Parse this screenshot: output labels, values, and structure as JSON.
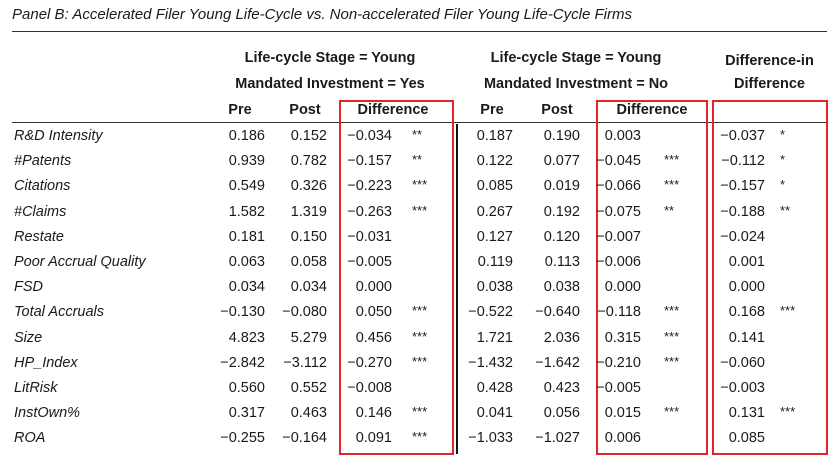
{
  "panel_title": "Panel B: Accelerated Filer Young Life-Cycle vs. Non-accelerated Filer Young Life-Cycle Firms",
  "groups": [
    {
      "line1": "Life-cycle Stage = Young",
      "line2": "Mandated Investment = Yes"
    },
    {
      "line1": "Life-cycle Stage = Young",
      "line2": "Mandated Investment = No"
    }
  ],
  "did_header": {
    "line1": "Difference-in",
    "line2": "Difference"
  },
  "subheaders": [
    "Pre",
    "Post",
    "Difference",
    "Pre",
    "Post",
    "Difference"
  ],
  "rows": [
    {
      "label": "R&D Intensity",
      "c": [
        "0.186",
        "0.152",
        "−0.034",
        "**",
        "0.187",
        "0.190",
        "0.003",
        "",
        "−0.037",
        "*"
      ]
    },
    {
      "label": "#Patents",
      "c": [
        "0.939",
        "0.782",
        "−0.157",
        "**",
        "0.122",
        "0.077",
        "−0.045",
        "***",
        "−0.112",
        "*"
      ]
    },
    {
      "label": "Citations",
      "c": [
        "0.549",
        "0.326",
        "−0.223",
        "***",
        "0.085",
        "0.019",
        "−0.066",
        "***",
        "−0.157",
        "*"
      ]
    },
    {
      "label": "#Claims",
      "c": [
        "1.582",
        "1.319",
        "−0.263",
        "***",
        "0.267",
        "0.192",
        "−0.075",
        "**",
        "−0.188",
        "**"
      ]
    },
    {
      "label": "Restate",
      "c": [
        "0.181",
        "0.150",
        "−0.031",
        "",
        "0.127",
        "0.120",
        "−0.007",
        "",
        "−0.024",
        ""
      ]
    },
    {
      "label": "Poor Accrual Quality",
      "c": [
        "0.063",
        "0.058",
        "−0.005",
        "",
        "0.119",
        "0.113",
        "−0.006",
        "",
        "0.001",
        ""
      ]
    },
    {
      "label": "FSD",
      "c": [
        "0.034",
        "0.034",
        "0.000",
        "",
        "0.038",
        "0.038",
        "0.000",
        "",
        "0.000",
        ""
      ]
    },
    {
      "label": "Total Accruals",
      "c": [
        "−0.130",
        "−0.080",
        "0.050",
        "***",
        "−0.522",
        "−0.640",
        "−0.118",
        "***",
        "0.168",
        "***"
      ]
    },
    {
      "label": "Size",
      "c": [
        "4.823",
        "5.279",
        "0.456",
        "***",
        "1.721",
        "2.036",
        "0.315",
        "***",
        "0.141",
        ""
      ]
    },
    {
      "label": "HP_Index",
      "c": [
        "−2.842",
        "−3.112",
        "−0.270",
        "***",
        "−1.432",
        "−1.642",
        "−0.210",
        "***",
        "−0.060",
        ""
      ]
    },
    {
      "label": "LitRisk",
      "c": [
        "0.560",
        "0.552",
        "−0.008",
        "",
        "0.428",
        "0.423",
        "−0.005",
        "",
        "−0.003",
        ""
      ]
    },
    {
      "label": "InstOwn%",
      "c": [
        "0.317",
        "0.463",
        "0.146",
        "***",
        "0.041",
        "0.056",
        "0.015",
        "***",
        "0.131",
        "***"
      ]
    },
    {
      "label": "ROA",
      "c": [
        "−0.255",
        "−0.164",
        "0.091",
        "***",
        "−1.033",
        "−1.027",
        "0.006",
        "",
        "0.085",
        ""
      ]
    }
  ]
}
